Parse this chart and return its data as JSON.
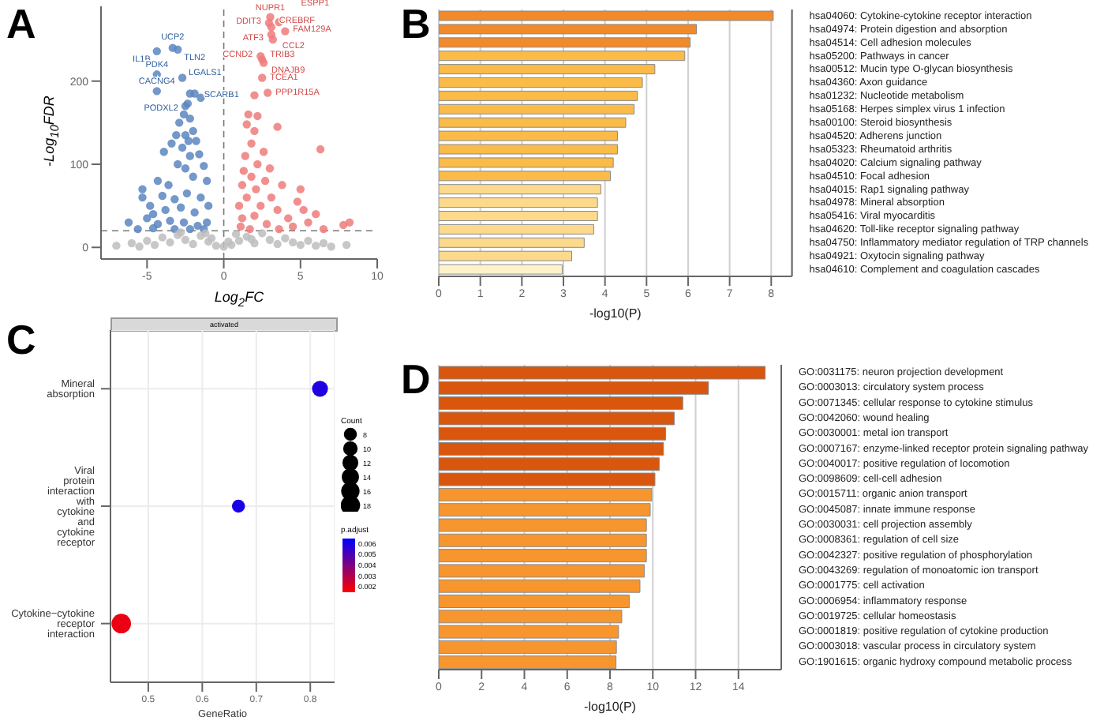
{
  "chart_data": [
    {
      "type": "scatter",
      "annotations": [
        "A",
        {
          "text": "UCP2",
          "x": -3.33,
          "y": 240
        },
        {
          "text": "IL1B",
          "x": -4.36,
          "y": 236
        },
        {
          "text": "TLN2",
          "x": -3.0,
          "y": 238
        },
        {
          "text": "PDK4",
          "x": -4.36,
          "y": 208
        },
        {
          "text": "CACNG4",
          "x": -4.36,
          "y": 188
        },
        {
          "text": "LGALS1",
          "x": -2.7,
          "y": 204
        },
        {
          "text": "SCARB1",
          "x": -2.2,
          "y": 185
        },
        {
          "text": "PODXL2",
          "x": -2.35,
          "y": 173
        },
        {
          "text": "NUPR1",
          "x": 3.03,
          "y": 277
        },
        {
          "text": "ESPP1",
          "x": 3.6,
          "y": 271
        },
        {
          "text": "DDIT3",
          "x": 2.95,
          "y": 270
        },
        {
          "text": "CREBRF",
          "x": 3.1,
          "y": 265
        },
        {
          "text": "ATF3",
          "x": 3.1,
          "y": 256
        },
        {
          "text": "FAM129A",
          "x": 4.0,
          "y": 260
        },
        {
          "text": "CCL2",
          "x": 3.2,
          "y": 250
        },
        {
          "text": "CCND2",
          "x": 2.4,
          "y": 230
        },
        {
          "text": "TRIB3",
          "x": 2.5,
          "y": 226
        },
        {
          "text": "DNAJB9",
          "x": 2.6,
          "y": 222
        },
        {
          "text": "TCEA1",
          "x": 2.5,
          "y": 204
        },
        {
          "text": "PPP1R15A",
          "x": 2.86,
          "y": 186
        }
      ],
      "xlabel": "Log$_{2}$FC",
      "ylabel": "-Log$_{10}$FDR",
      "xlim": [
        -8,
        10
      ],
      "ylim": [
        -14,
        290
      ],
      "xticks": [
        -5,
        0,
        5,
        10
      ],
      "yticks": [
        0,
        100,
        200
      ],
      "marker": "circle",
      "ref_lines": [
        {
          "axis": "x",
          "value": 0,
          "color": "#777777",
          "line_style": "dashed"
        },
        {
          "axis": "y",
          "value": 20,
          "color": "#777777",
          "line_style": "dashed"
        }
      ],
      "series": [
        {
          "color": "#5b86c0",
          "x": [
            -3.33,
            -4.36,
            -3.0,
            -4.36,
            -4.36,
            -2.7,
            -2.2,
            -2.35,
            -1.9,
            -2.5,
            -2.6,
            -2.9,
            -2.2,
            -3.1,
            -2.5,
            -2.0,
            -3.4,
            -2.7,
            -1.8,
            -3.9,
            -2.2,
            -1.6,
            -3.0,
            -2.5,
            -1.3,
            -4.3,
            -3.6,
            -2.0,
            -1.1,
            -5.3,
            -4.0,
            -3.2,
            -2.4,
            -1.5,
            -4.8,
            -3.8,
            -2.8,
            -1.9,
            -1.0,
            -6.2,
            -5.0,
            -4.3,
            -3.5,
            -2.6,
            -1.7,
            -1.1,
            -5.6,
            -4.6,
            -3.2,
            -2.2,
            -1.3,
            -5.3,
            -4.6,
            -1.5,
            -2.3
          ],
          "values": [
            240,
            236,
            238,
            208,
            188,
            204,
            185,
            173,
            185,
            170,
            160,
            150,
            155,
            135,
            135,
            140,
            125,
            120,
            128,
            115,
            110,
            112,
            100,
            95,
            98,
            80,
            75,
            85,
            80,
            60,
            62,
            58,
            65,
            60,
            50,
            45,
            48,
            42,
            50,
            30,
            35,
            28,
            32,
            30,
            26,
            30,
            22,
            23,
            22,
            22,
            22,
            70,
            40,
            180,
            128
          ]
        },
        {
          "color": "#ef7b7b",
          "x": [
            3.03,
            3.6,
            2.95,
            3.1,
            3.1,
            4.0,
            3.2,
            2.4,
            2.5,
            2.6,
            2.5,
            2.86,
            2.0,
            1.6,
            2.2,
            3.5,
            1.5,
            2.0,
            6.3,
            1.8,
            2.6,
            1.4,
            2.2,
            3.0,
            1.3,
            1.8,
            2.7,
            3.8,
            1.2,
            2.1,
            4.8,
            1.5,
            3.1,
            5.0,
            1.0,
            2.4,
            3.5,
            6.0,
            1.2,
            2.0,
            4.2,
            5.5,
            1.1,
            2.8,
            4.5,
            7.8,
            8.2,
            6.5,
            3.6,
            1.7,
            5.2
          ],
          "values": [
            277,
            271,
            270,
            265,
            256,
            260,
            250,
            230,
            226,
            222,
            204,
            186,
            183,
            160,
            158,
            145,
            148,
            140,
            118,
            125,
            115,
            110,
            100,
            95,
            92,
            85,
            80,
            75,
            75,
            70,
            55,
            60,
            60,
            70,
            50,
            50,
            45,
            40,
            35,
            38,
            35,
            30,
            25,
            28,
            25,
            27,
            30,
            22,
            22,
            22,
            45
          ]
        },
        {
          "color": "#bdbdbd",
          "x": [
            -7,
            -6,
            -5,
            -4.5,
            -4,
            -3.5,
            -3,
            -2.5,
            -2,
            -1.5,
            -1,
            -0.5,
            0,
            0.5,
            1,
            1.5,
            2,
            2.5,
            3,
            3.5,
            4,
            4.5,
            5,
            5.5,
            6,
            6.5,
            7,
            8,
            -5.5,
            -2.8,
            -1.2,
            0.8,
            1.8,
            -0.8,
            0.3
          ],
          "values": [
            2,
            5,
            8,
            3,
            12,
            6,
            15,
            9,
            4,
            14,
            7,
            2,
            1,
            3,
            8,
            13,
            5,
            17,
            9,
            4,
            11,
            6,
            3,
            8,
            2,
            5,
            1,
            3,
            1,
            18,
            17,
            16,
            10,
            11,
            7
          ]
        }
      ]
    },
    {
      "type": "bar",
      "orientation": "horizontal",
      "annotations": [
        "B"
      ],
      "xlabel": "-log10(P)",
      "xlim": [
        0,
        8.5
      ],
      "xticks": [
        0,
        1,
        2,
        3,
        4,
        5,
        6,
        7,
        8
      ],
      "grid": "x",
      "categories": [
        "hsa04060: Cytokine-cytokine receptor interaction",
        "hsa04974: Protein digestion and absorption",
        "hsa04514: Cell adhesion molecules",
        "hsa05200: Pathways in cancer",
        "hsa00512: Mucin type O-glycan biosynthesis",
        "hsa04360: Axon guidance",
        "hsa01232: Nucleotide metabolism",
        "hsa05168: Herpes simplex virus 1 infection",
        "hsa00100: Steroid biosynthesis",
        "hsa04520: Adherens junction",
        "hsa05323: Rheumatoid arthritis",
        "hsa04020: Calcium signaling pathway",
        "hsa04510: Focal adhesion",
        "hsa04015: Rap1 signaling pathway",
        "hsa04978: Mineral absorption",
        "hsa05416: Viral myocarditis",
        "hsa04620: Toll-like receptor signaling pathway",
        "hsa04750: Inflammatory mediator regulation of TRP channels",
        "hsa04921: Oxytocin signaling pathway",
        "hsa04610: Complement and coagulation cascades"
      ],
      "values": [
        8.05,
        6.2,
        6.05,
        5.92,
        5.2,
        4.9,
        4.78,
        4.7,
        4.5,
        4.3,
        4.3,
        4.2,
        4.13,
        3.9,
        3.82,
        3.82,
        3.73,
        3.5,
        3.2,
        2.97
      ],
      "colors": [
        "#f08a2a",
        "#f08a2a",
        "#f08a2a",
        "#fbbb48",
        "#fbbb48",
        "#fbbb48",
        "#fbbb48",
        "#fbbb48",
        "#fbbb48",
        "#fbbb48",
        "#fbbb48",
        "#fbbb48",
        "#fbbb48",
        "#fdd98c",
        "#fdd98c",
        "#fdd98c",
        "#fdd98c",
        "#fdd98c",
        "#fdd98c",
        "#fff2c8"
      ]
    },
    {
      "type": "bubble",
      "orientation": "horizontal",
      "annotations": [
        "C"
      ],
      "subtitle": "activated",
      "xlabel": "GeneRatio",
      "xlim": [
        0.43,
        0.845
      ],
      "xticks": [
        0.5,
        0.6,
        0.7,
        0.8
      ],
      "grid": true,
      "legend_title": "Count",
      "clabel": "p.adjust",
      "categories": [
        "Mineral absorption",
        "Viral protein interaction with cytokine and cytokine receptor",
        "Cytokine−cytokine receptor interaction"
      ],
      "values": [
        0.818,
        0.667,
        0.45
      ],
      "sizes": [
        12,
        8,
        18
      ],
      "size_legend": [
        8,
        10,
        12,
        14,
        16,
        18
      ],
      "cvalues": [
        0.0059,
        0.006,
        0.0019
      ],
      "clim": [
        0.0015,
        0.0065
      ],
      "cticks": [
        0.006,
        0.005,
        0.004,
        0.003,
        0.002
      ]
    },
    {
      "type": "bar",
      "orientation": "horizontal",
      "annotations": [
        "D"
      ],
      "xlabel": "-log10(P)",
      "xlim": [
        0,
        16
      ],
      "xticks": [
        0,
        2,
        4,
        6,
        8,
        10,
        12,
        14
      ],
      "grid": "x",
      "categories": [
        "GO:0031175: neuron projection development",
        "GO:0003013: circulatory system process",
        "GO:0071345: cellular response to cytokine stimulus",
        "GO:0042060: wound healing",
        "GO:0030001: metal ion transport",
        "GO:0007167: enzyme-linked receptor protein signaling pathway",
        "GO:0040017: positive regulation of locomotion",
        "GO:0098609: cell-cell adhesion",
        "GO:0015711: organic anion transport",
        "GO:0045087: innate immune response",
        "GO:0030031: cell projection assembly",
        "GO:0008361: regulation of cell size",
        "GO:0042327: positive regulation of phosphorylation",
        "GO:0043269: regulation of monoatomic ion transport",
        "GO:0001775: cell activation",
        "GO:0006954: inflammatory response",
        "GO:0019725: cellular homeostasis",
        "GO:0001819: positive regulation of cytokine production",
        "GO:0003018: vascular process in circulatory system",
        "GO:1901615: organic hydroxy compound metabolic process"
      ],
      "values": [
        15.25,
        12.6,
        11.4,
        11.0,
        10.6,
        10.5,
        10.3,
        10.1,
        9.95,
        9.88,
        9.7,
        9.7,
        9.7,
        9.6,
        9.4,
        8.9,
        8.55,
        8.4,
        8.3,
        8.28
      ],
      "colors": [
        "#d9560f",
        "#d9560f",
        "#d9560f",
        "#d9560f",
        "#d9560f",
        "#d9560f",
        "#d9560f",
        "#d9560f",
        "#f7962e",
        "#f7962e",
        "#f7962e",
        "#f7962e",
        "#f7962e",
        "#f7962e",
        "#f7962e",
        "#f7962e",
        "#f7962e",
        "#f7962e",
        "#f7962e",
        "#f7962e"
      ]
    }
  ]
}
